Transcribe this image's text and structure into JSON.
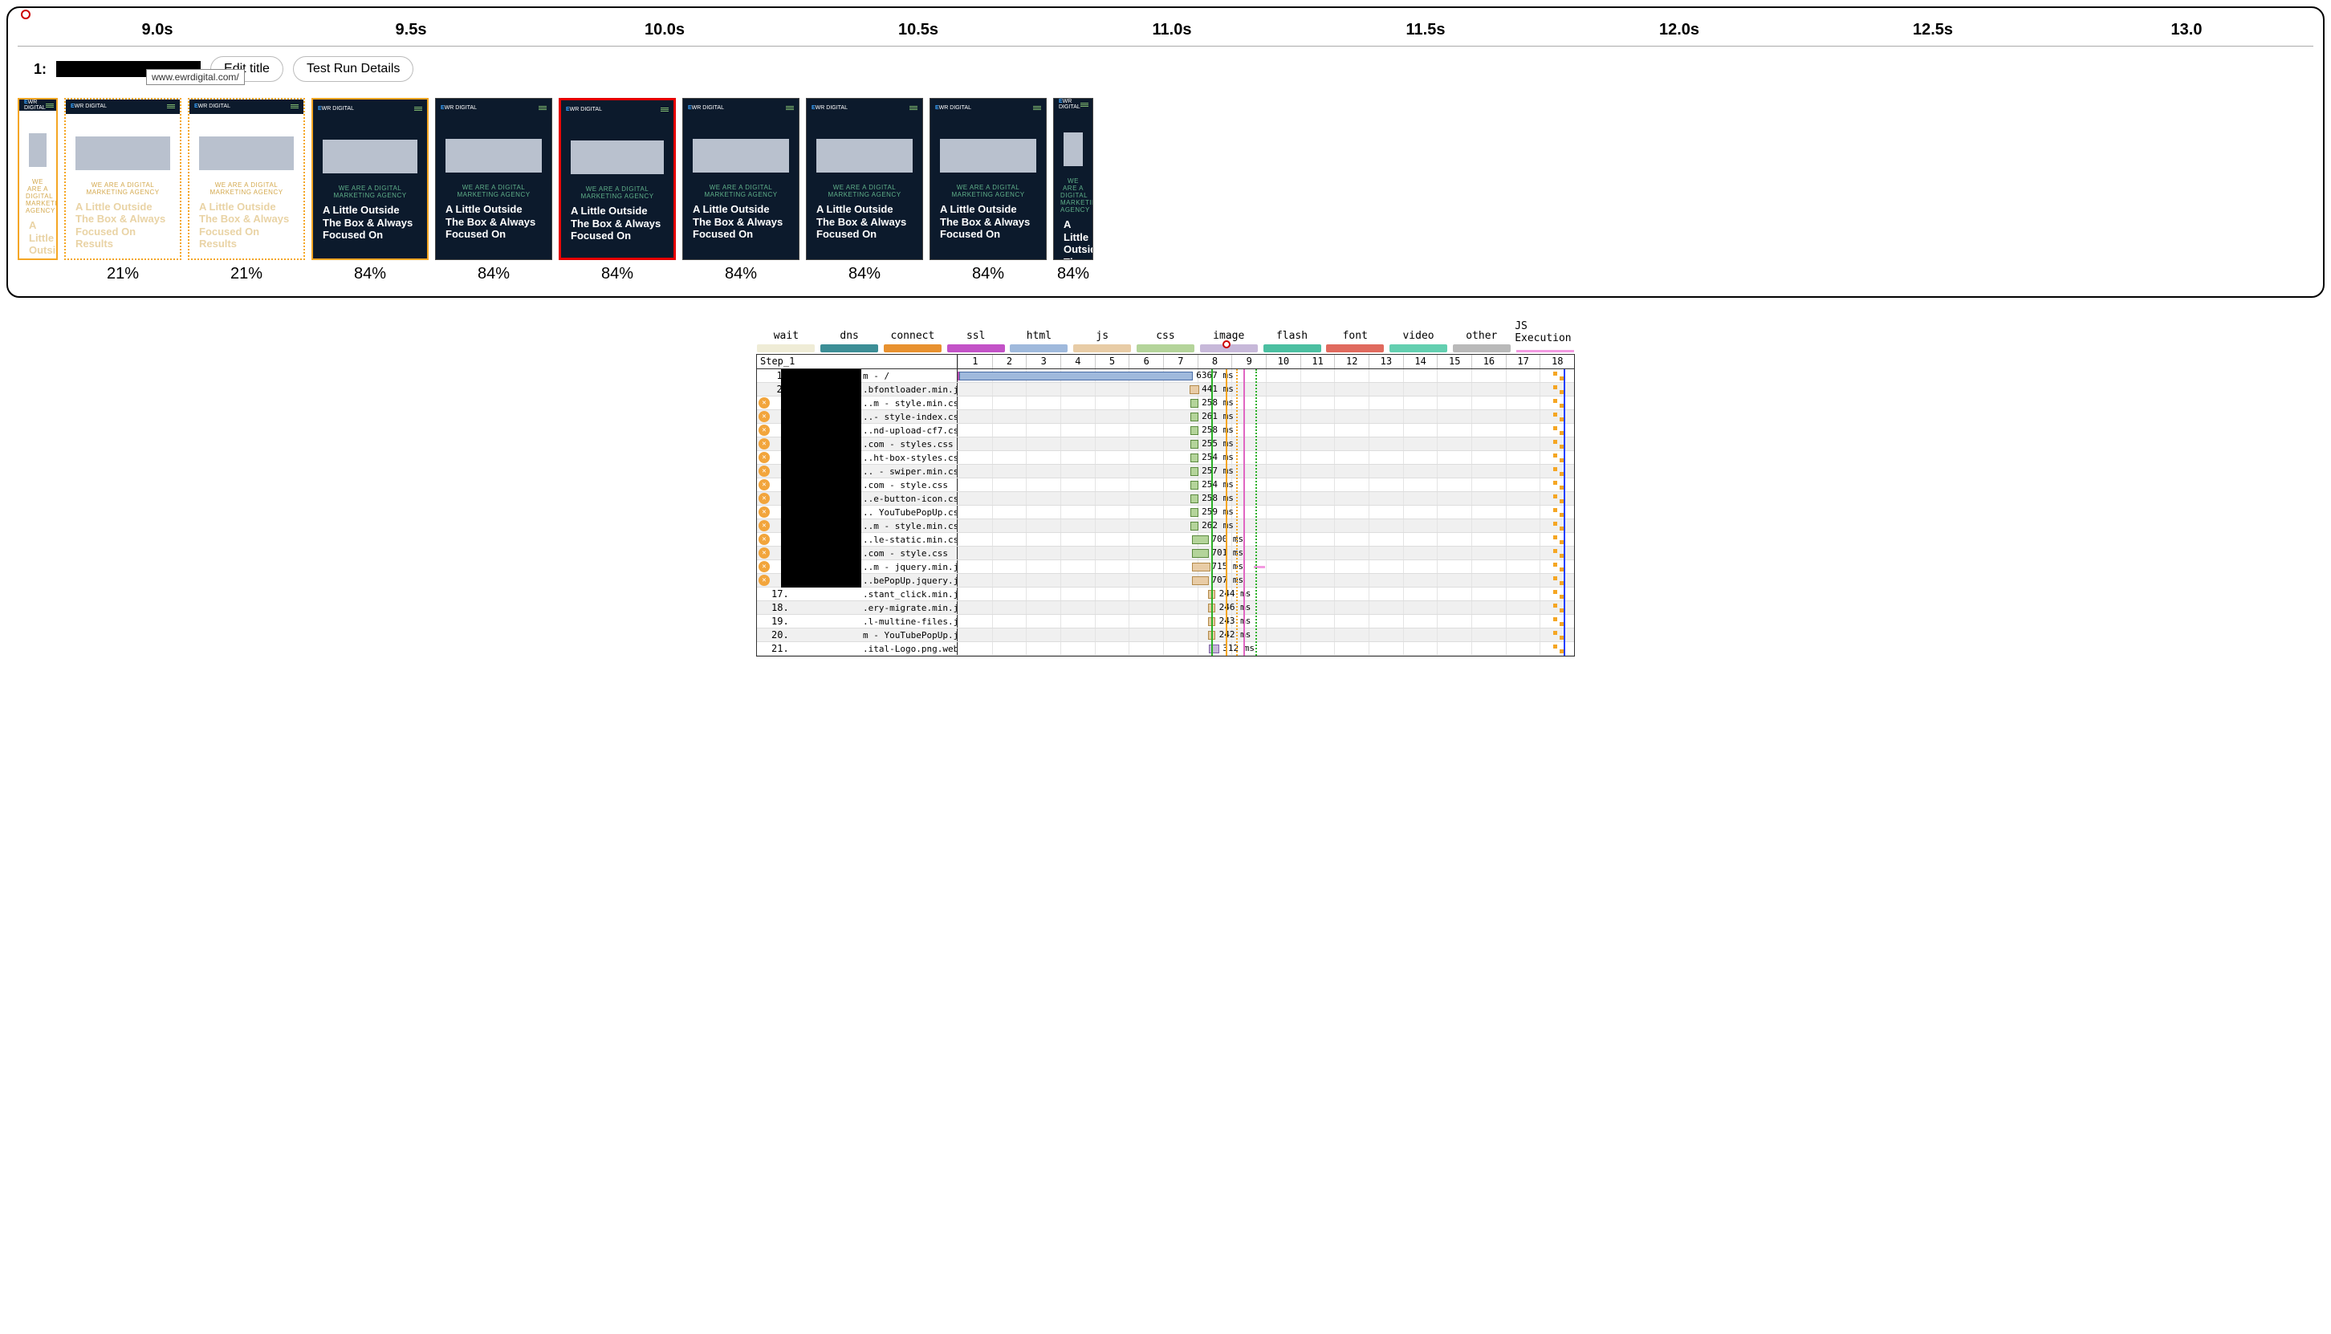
{
  "timeline": {
    "ticks": [
      "9.0s",
      "9.5s",
      "10.0s",
      "10.5s",
      "11.0s",
      "11.5s",
      "12.0s",
      "12.5s",
      "13.0"
    ]
  },
  "titleRow": {
    "prefix": "1:",
    "tooltip": "www.ewrdigital.com/",
    "editBtn": "Edit title",
    "detailsBtn": "Test Run Details"
  },
  "frameContent": {
    "logo_text": "EWR DIGITAL",
    "tagline": "WE ARE A DIGITAL MARKETING AGENCY",
    "headline": "A Little Outside The Box & Always Focused On",
    "headline_light": "A Little Outside The Box & Always Focused On Results"
  },
  "frames": [
    {
      "pct": "",
      "border": "solid-orange",
      "light": true,
      "partial": true
    },
    {
      "pct": "21%",
      "border": "dotted-orange",
      "light": true
    },
    {
      "pct": "21%",
      "border": "dotted-orange",
      "light": true
    },
    {
      "pct": "84%",
      "border": "solid-orange",
      "light": false
    },
    {
      "pct": "84%",
      "border": "plain",
      "light": false
    },
    {
      "pct": "84%",
      "border": "red-border",
      "light": false
    },
    {
      "pct": "84%",
      "border": "plain",
      "light": false
    },
    {
      "pct": "84%",
      "border": "plain",
      "light": false
    },
    {
      "pct": "84%",
      "border": "plain",
      "light": false
    },
    {
      "pct": "84%",
      "border": "plain",
      "light": false,
      "partial": true
    }
  ],
  "legend": [
    {
      "label": "wait",
      "color": "#efecd6",
      "type": "swatch"
    },
    {
      "label": "dns",
      "color": "#3c8e96",
      "type": "swatch"
    },
    {
      "label": "connect",
      "color": "#e8912f",
      "type": "swatch"
    },
    {
      "label": "ssl",
      "color": "#c352c7",
      "type": "swatch"
    },
    {
      "label": "html",
      "color": "#9fb9dc",
      "type": "swatch"
    },
    {
      "label": "js",
      "color": "#e8cca6",
      "type": "swatch"
    },
    {
      "label": "css",
      "color": "#b4d49a",
      "type": "swatch"
    },
    {
      "label": "image",
      "color": "#c7b8d9",
      "type": "swatch"
    },
    {
      "label": "flash",
      "color": "#4bbfa1",
      "type": "swatch"
    },
    {
      "label": "font",
      "color": "#e06a5e",
      "type": "swatch"
    },
    {
      "label": "video",
      "color": "#63cfb0",
      "type": "swatch"
    },
    {
      "label": "other",
      "color": "#b9b9b9",
      "type": "swatch"
    },
    {
      "label": "JS Execution",
      "color": "#f29ae0",
      "type": "line"
    }
  ],
  "waterfall": {
    "step_label": "Step_1",
    "seconds": 18,
    "cursor_pct": 43.7,
    "vlines": [
      {
        "cls": "green",
        "pct": 41.2
      },
      {
        "cls": "orange-solid",
        "pct": 43.5
      },
      {
        "cls": "orange-dotted",
        "pct": 45.2
      },
      {
        "cls": "pink",
        "pct": 46.3
      },
      {
        "cls": "green-dotted",
        "pct": 48.3
      },
      {
        "cls": "blue",
        "pct": 98.3
      }
    ],
    "rows": [
      {
        "n": "1.",
        "icon": false,
        "name": "m - /",
        "type": "html",
        "seg_start": 0.0,
        "seg_end": 0.3,
        "bar_start": 0.3,
        "bar_end": 38.2,
        "ms": "6367 ms",
        "label_pct": 38.7
      },
      {
        "n": "2.",
        "icon": false,
        "name": ".bfontloader.min.js",
        "type": "js",
        "bar_start": 37.6,
        "bar_end": 39.2,
        "ms": "441 ms",
        "label_pct": 39.6
      },
      {
        "n": "",
        "icon": true,
        "name": "..m - style.min.css",
        "type": "css",
        "bar_start": 37.8,
        "bar_end": 39.0,
        "ms": "258 ms",
        "label_pct": 39.6
      },
      {
        "n": "",
        "icon": true,
        "name": "..- style-index.css",
        "type": "css",
        "bar_start": 37.8,
        "bar_end": 39.0,
        "ms": "261 ms",
        "label_pct": 39.6
      },
      {
        "n": "",
        "icon": true,
        "name": "..nd-upload-cf7.css",
        "type": "css",
        "bar_start": 37.8,
        "bar_end": 39.0,
        "ms": "258 ms",
        "label_pct": 39.6
      },
      {
        "n": "",
        "icon": true,
        "name": ".com - styles.css",
        "type": "css",
        "bar_start": 37.8,
        "bar_end": 39.0,
        "ms": "255 ms",
        "label_pct": 39.6
      },
      {
        "n": "",
        "icon": true,
        "name": "..ht-box-styles.css",
        "type": "css",
        "bar_start": 37.8,
        "bar_end": 39.0,
        "ms": "254 ms",
        "label_pct": 39.6
      },
      {
        "n": "",
        "icon": true,
        "name": ".. - swiper.min.css",
        "type": "css",
        "bar_start": 37.8,
        "bar_end": 39.0,
        "ms": "257 ms",
        "label_pct": 39.6
      },
      {
        "n": "",
        "icon": true,
        "name": ".com - style.css",
        "type": "css",
        "bar_start": 37.8,
        "bar_end": 39.0,
        "ms": "254 ms",
        "label_pct": 39.6
      },
      {
        "n": "",
        "icon": true,
        "name": "..e-button-icon.css",
        "type": "css",
        "bar_start": 37.8,
        "bar_end": 39.0,
        "ms": "258 ms",
        "label_pct": 39.6
      },
      {
        "n": "1",
        "icon": true,
        "name": ".. YouTubePopUp.css",
        "type": "css",
        "bar_start": 37.8,
        "bar_end": 39.0,
        "ms": "259 ms",
        "label_pct": 39.6
      },
      {
        "n": "",
        "icon": true,
        "name": "..m - style.min.css",
        "type": "css",
        "bar_start": 37.8,
        "bar_end": 39.0,
        "ms": "262 ms",
        "label_pct": 39.6
      },
      {
        "n": "1",
        "icon": true,
        "name": "..le-static.min.css",
        "type": "css",
        "bar_start": 38.0,
        "bar_end": 40.8,
        "ms": "700 ms",
        "label_pct": 41.2
      },
      {
        "n": "",
        "icon": true,
        "name": ".com - style.css",
        "type": "css",
        "bar_start": 38.0,
        "bar_end": 40.8,
        "ms": "701 ms",
        "label_pct": 41.2
      },
      {
        "n": "1",
        "icon": true,
        "name": "..m - jquery.min.js",
        "type": "js",
        "bar_start": 38.0,
        "bar_end": 41.0,
        "ms": "715 ms",
        "label_pct": 41.2,
        "js_exec": 48.0
      },
      {
        "n": "1",
        "icon": true,
        "name": "..bePopUp.jquery.js",
        "type": "js",
        "bar_start": 38.0,
        "bar_end": 40.8,
        "ms": "707 ms",
        "label_pct": 41.2
      },
      {
        "n": "17.",
        "icon": false,
        "name": ".stant_click.min.js",
        "type": "js",
        "bar_start": 40.6,
        "bar_end": 41.8,
        "ms": "244 ms",
        "label_pct": 42.4
      },
      {
        "n": "18.",
        "icon": false,
        "name": ".ery-migrate.min.js",
        "type": "js",
        "bar_start": 40.6,
        "bar_end": 41.8,
        "ms": "246 ms",
        "label_pct": 42.4
      },
      {
        "n": "19.",
        "icon": false,
        "name": ".l-multine-files.js",
        "type": "js",
        "bar_start": 40.6,
        "bar_end": 41.8,
        "ms": "243 ms",
        "label_pct": 42.4
      },
      {
        "n": "20.",
        "icon": false,
        "name": "m - YouTubePopUp.js",
        "type": "js",
        "bar_start": 40.6,
        "bar_end": 41.8,
        "ms": "242 ms",
        "label_pct": 42.4
      },
      {
        "n": "21.",
        "icon": false,
        "name": ".ital-Logo.png.webp",
        "type": "image",
        "bar_start": 40.8,
        "bar_end": 42.4,
        "ms": "312 ms",
        "label_pct": 43.0
      }
    ]
  },
  "colors": {
    "panel_border": "#000000",
    "filmstrip_orange": "#f5a623",
    "filmstrip_red": "#e60000",
    "frame_dark_bg": "#0c1a2c",
    "frame_hero": "#b9c1ce",
    "tagline_green": "#5fb089"
  }
}
